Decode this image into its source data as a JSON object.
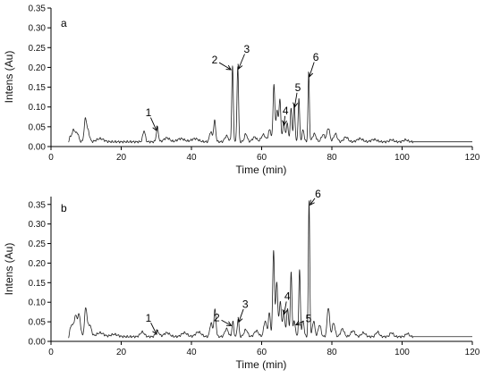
{
  "chart_data": [
    {
      "type": "line",
      "panel_label": "a",
      "xlabel": "Time (min)",
      "ylabel": "Intens (Au)",
      "xlim": [
        0,
        120
      ],
      "ylim": [
        0,
        0.35
      ],
      "xticks": [
        0,
        20,
        40,
        60,
        80,
        100,
        120
      ],
      "xtick_labels": [
        "0",
        "20",
        "40",
        "60",
        "80",
        "100",
        "120"
      ],
      "yticks": [
        0,
        0.05,
        0.1,
        0.15,
        0.2,
        0.25,
        0.3,
        0.35
      ],
      "ytick_labels": [
        "0.00",
        "0.05",
        "0.10",
        "0.15",
        "0.20",
        "0.25",
        "0.30",
        "0.35"
      ],
      "baseline": 0.012,
      "series": [
        {
          "peaks": [
            [
              5.5,
              0.02,
              0.5
            ],
            [
              6.5,
              0.028,
              0.4
            ],
            [
              7.5,
              0.022,
              0.4
            ],
            [
              9.8,
              0.056,
              0.35
            ],
            [
              10.6,
              0.025,
              0.4
            ],
            [
              14,
              0.008,
              1
            ],
            [
              26.5,
              0.028,
              0.35
            ],
            [
              30.3,
              0.036,
              0.3
            ],
            [
              33,
              0.01,
              0.8
            ],
            [
              37,
              0.008,
              1
            ],
            [
              41,
              0.008,
              1
            ],
            [
              45.5,
              0.026,
              0.35
            ],
            [
              46.6,
              0.053,
              0.3
            ],
            [
              50,
              0.015,
              0.5
            ],
            [
              51.7,
              0.192,
              0.22
            ],
            [
              53.2,
              0.192,
              0.22
            ],
            [
              55.5,
              0.02,
              0.4
            ],
            [
              58,
              0.012,
              0.6
            ],
            [
              60.5,
              0.018,
              0.6
            ],
            [
              62.3,
              0.03,
              0.4
            ],
            [
              63.5,
              0.145,
              0.25
            ],
            [
              64.4,
              0.08,
              0.3
            ],
            [
              65.2,
              0.108,
              0.25
            ],
            [
              66.3,
              0.05,
              0.3
            ],
            [
              67.3,
              0.045,
              0.3
            ],
            [
              68.4,
              0.085,
              0.25
            ],
            [
              69.3,
              0.095,
              0.22
            ],
            [
              70.6,
              0.108,
              0.22
            ],
            [
              71.8,
              0.03,
              0.3
            ],
            [
              73.4,
              0.172,
              0.2
            ],
            [
              75,
              0.02,
              0.5
            ],
            [
              77.5,
              0.018,
              0.5
            ],
            [
              79,
              0.035,
              0.4
            ],
            [
              81,
              0.02,
              0.5
            ],
            [
              84,
              0.012,
              0.6
            ],
            [
              88,
              0.008,
              0.8
            ],
            [
              92,
              0.006,
              0.8
            ],
            [
              97,
              0.005,
              0.6
            ],
            [
              101,
              0.005,
              0.6
            ]
          ]
        }
      ],
      "annotations": [
        {
          "text": "1",
          "x": 30.3,
          "y": 0.036
        },
        {
          "text": "2",
          "x": 51.7,
          "y": 0.192
        },
        {
          "text": "3",
          "x": 53.2,
          "y": 0.192
        },
        {
          "text": "4",
          "x": 66.3,
          "y": 0.05
        },
        {
          "text": "5",
          "x": 69.3,
          "y": 0.095
        },
        {
          "text": "6",
          "x": 73.4,
          "y": 0.172
        }
      ]
    },
    {
      "type": "line",
      "panel_label": "b",
      "xlabel": "Time (min)",
      "ylabel": "Intens (Au)",
      "xlim": [
        0,
        120
      ],
      "ylim": [
        0,
        0.37
      ],
      "xticks": [
        0,
        20,
        40,
        60,
        80,
        100,
        120
      ],
      "xtick_labels": [
        "0",
        "20",
        "40",
        "60",
        "80",
        "100",
        "120"
      ],
      "yticks": [
        0,
        0.05,
        0.1,
        0.15,
        0.2,
        0.25,
        0.3,
        0.35
      ],
      "ytick_labels": [
        "0.00",
        "0.05",
        "0.10",
        "0.15",
        "0.20",
        "0.25",
        "0.30",
        "0.35"
      ],
      "baseline": 0.012,
      "series": [
        {
          "peaks": [
            [
              5.8,
              0.035,
              0.5
            ],
            [
              7,
              0.05,
              0.4
            ],
            [
              8,
              0.055,
              0.4
            ],
            [
              9.9,
              0.072,
              0.35
            ],
            [
              11,
              0.03,
              0.5
            ],
            [
              14,
              0.01,
              1
            ],
            [
              18,
              0.006,
              1
            ],
            [
              26,
              0.012,
              0.6
            ],
            [
              30.3,
              0.014,
              0.5
            ],
            [
              33,
              0.01,
              0.8
            ],
            [
              38,
              0.01,
              0.8
            ],
            [
              42,
              0.012,
              0.8
            ],
            [
              45.6,
              0.035,
              0.35
            ],
            [
              46.7,
              0.068,
              0.3
            ],
            [
              50,
              0.02,
              0.5
            ],
            [
              51.8,
              0.038,
              0.25
            ],
            [
              53.3,
              0.045,
              0.25
            ],
            [
              55.5,
              0.018,
              0.5
            ],
            [
              58.5,
              0.015,
              0.6
            ],
            [
              61,
              0.04,
              0.4
            ],
            [
              62.2,
              0.06,
              0.3
            ],
            [
              63.4,
              0.22,
              0.25
            ],
            [
              64.3,
              0.14,
              0.28
            ],
            [
              65.3,
              0.09,
              0.3
            ],
            [
              66.3,
              0.065,
              0.3
            ],
            [
              67.4,
              0.07,
              0.3
            ],
            [
              68.4,
              0.165,
              0.22
            ],
            [
              69.3,
              0.04,
              0.3
            ],
            [
              70.8,
              0.17,
              0.22
            ],
            [
              71.8,
              0.04,
              0.3
            ],
            [
              73.5,
              0.345,
              0.2
            ],
            [
              74.8,
              0.04,
              0.35
            ],
            [
              76.5,
              0.03,
              0.4
            ],
            [
              79,
              0.075,
              0.35
            ],
            [
              80.5,
              0.035,
              0.4
            ],
            [
              83,
              0.02,
              0.5
            ],
            [
              86,
              0.015,
              0.6
            ],
            [
              89,
              0.01,
              0.6
            ],
            [
              93,
              0.012,
              0.5
            ],
            [
              97,
              0.01,
              0.5
            ],
            [
              101.5,
              0.008,
              0.5
            ]
          ]
        }
      ],
      "annotations": [
        {
          "text": "1",
          "x": 30.3,
          "y": 0.014
        },
        {
          "text": "2",
          "x": 51.8,
          "y": 0.038
        },
        {
          "text": "3",
          "x": 53.3,
          "y": 0.045
        },
        {
          "text": "4",
          "x": 66.3,
          "y": 0.065
        },
        {
          "text": "5",
          "x": 69.3,
          "y": 0.04
        },
        {
          "text": "6",
          "x": 73.5,
          "y": 0.345
        }
      ]
    }
  ]
}
